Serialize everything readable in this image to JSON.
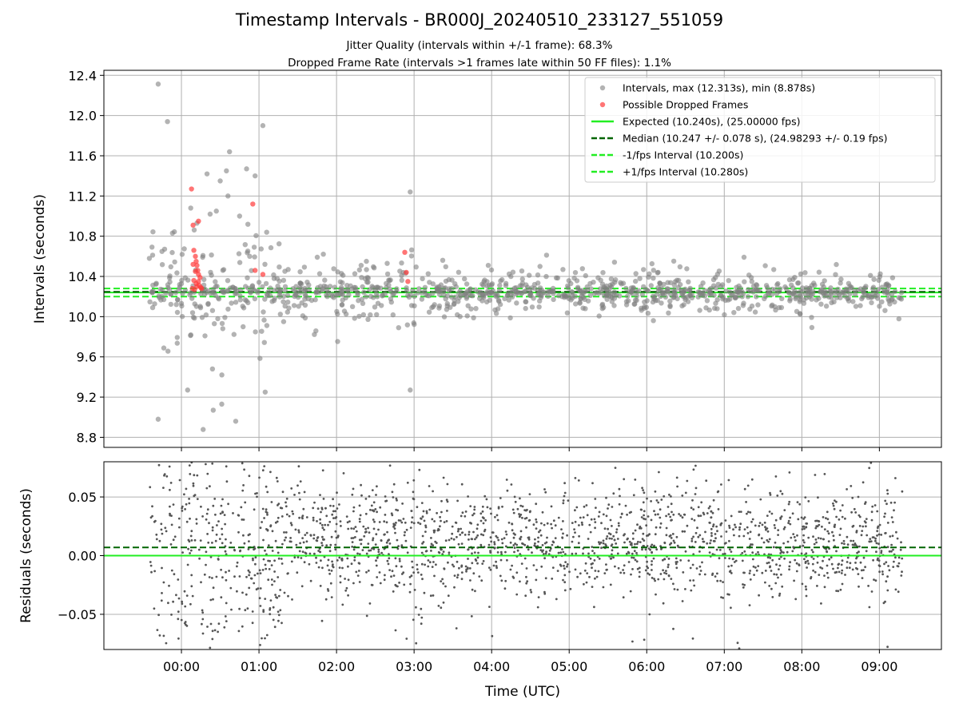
{
  "title": "Timestamp Intervals - BR000J_20240510_233127_551059",
  "subtitle_jitter": "Jitter Quality (intervals within +/-1 frame): 68.3%",
  "subtitle_dropped": "Dropped Frame Rate (intervals >1 frames late within 50 FF files): 1.1%",
  "colors": {
    "points": "#808080",
    "dropped": "#ff3b3b",
    "expected": "#22ee22",
    "median": "#006400",
    "interval": "#22ee22",
    "residual_points": "#555555",
    "grid": "#b0b0b0"
  },
  "chart_data": [
    {
      "type": "scatter",
      "panel": "top",
      "xlabel": "",
      "ylabel": "Intervals (seconds)",
      "xlim": [
        -1.0,
        9.8
      ],
      "ylim": [
        8.7,
        12.45
      ],
      "yticks": [
        8.8,
        9.2,
        9.6,
        10.0,
        10.4,
        10.8,
        11.2,
        11.6,
        12.0,
        12.4
      ],
      "ytick_labels": [
        "8.8",
        "9.2",
        "9.6",
        "10.0",
        "10.4",
        "10.8",
        "11.2",
        "11.6",
        "12.0",
        "12.4"
      ],
      "xticks": [
        0,
        1,
        2,
        3,
        4,
        5,
        6,
        7,
        8,
        9
      ],
      "grid": true,
      "legend_position": "top-right",
      "legend": [
        "Intervals, max (12.313s), min (8.878s)",
        "Possible Dropped Frames",
        "Expected (10.240s), (25.00000 fps)",
        "Median (10.247 +/- 0.078 s), (24.98293 +/- 0.19 fps)",
        "-1/fps Interval (10.200s)",
        "+1/fps Interval (10.280s)"
      ],
      "series": [
        {
          "name": "Intervals, max (12.313s), min (8.878s)",
          "x": [
            -0.3,
            -0.18,
            0.62,
            0.95,
            1.05,
            0.5,
            0.58,
            0.84,
            0.12,
            0.45,
            0.33,
            0.2,
            0.37,
            0.6,
            0.75,
            0.88,
            2.95,
            -0.3,
            0.4,
            0.08,
            1.08,
            2.95,
            0.52,
            0.7,
            0.41,
            0.28
          ],
          "y": [
            12.313,
            11.94,
            11.64,
            11.4,
            11.9,
            11.35,
            11.45,
            11.47,
            11.08,
            11.05,
            11.42,
            10.93,
            11.02,
            11.2,
            11.0,
            10.6,
            11.24,
            8.98,
            9.48,
            9.27,
            9.25,
            9.27,
            9.13,
            8.96,
            9.07,
            8.878
          ]
        },
        {
          "name": "Possible Dropped Frames",
          "x": [
            0.13,
            0.15,
            0.16,
            0.18,
            0.19,
            0.2,
            0.21,
            0.22,
            0.24,
            0.16,
            0.19,
            0.23,
            0.25,
            0.14,
            0.26,
            0.17,
            0.2,
            0.22,
            0.18,
            0.15,
            0.22,
            0.92,
            0.95,
            1.05,
            2.88,
            2.9,
            2.92
          ],
          "y": [
            11.27,
            10.91,
            10.66,
            10.6,
            10.55,
            10.51,
            10.46,
            10.42,
            10.39,
            10.36,
            10.33,
            10.31,
            10.29,
            10.28,
            10.28,
            10.27,
            10.3,
            10.35,
            10.45,
            10.52,
            10.95,
            11.12,
            10.46,
            10.42,
            10.64,
            10.44,
            10.35
          ]
        }
      ],
      "lines": [
        {
          "name": "Expected (10.240s), (25.00000 fps)",
          "y": 10.24,
          "style": "solid"
        },
        {
          "name": "Median (10.247 +/- 0.078 s), (24.98293 +/- 0.19 fps)",
          "y": 10.247,
          "style": "dashed"
        },
        {
          "name": "-1/fps Interval (10.200s)",
          "y": 10.2,
          "style": "dashed"
        },
        {
          "name": "+1/fps Interval (10.280s)",
          "y": 10.28,
          "style": "dashed"
        }
      ]
    },
    {
      "type": "scatter",
      "panel": "bottom",
      "xlabel": "Time (UTC)",
      "ylabel": "Residuals (seconds)",
      "xlim": [
        -1.0,
        9.8
      ],
      "ylim": [
        -0.08,
        0.08
      ],
      "yticks": [
        -0.05,
        0.0,
        0.05
      ],
      "ytick_labels": [
        "−0.05",
        "0.00",
        "0.05"
      ],
      "xticks": [
        0,
        1,
        2,
        3,
        4,
        5,
        6,
        7,
        8,
        9
      ],
      "xtick_labels": [
        "00:00",
        "01:00",
        "02:00",
        "03:00",
        "04:00",
        "05:00",
        "06:00",
        "07:00",
        "08:00",
        "09:00"
      ],
      "grid": true,
      "lines": [
        {
          "name": "zero",
          "y": 0.0,
          "style": "solid"
        },
        {
          "name": "median offset",
          "y": 0.007,
          "style": "dashed"
        }
      ],
      "x_range_of_points": [
        -0.42,
        9.3
      ]
    }
  ]
}
